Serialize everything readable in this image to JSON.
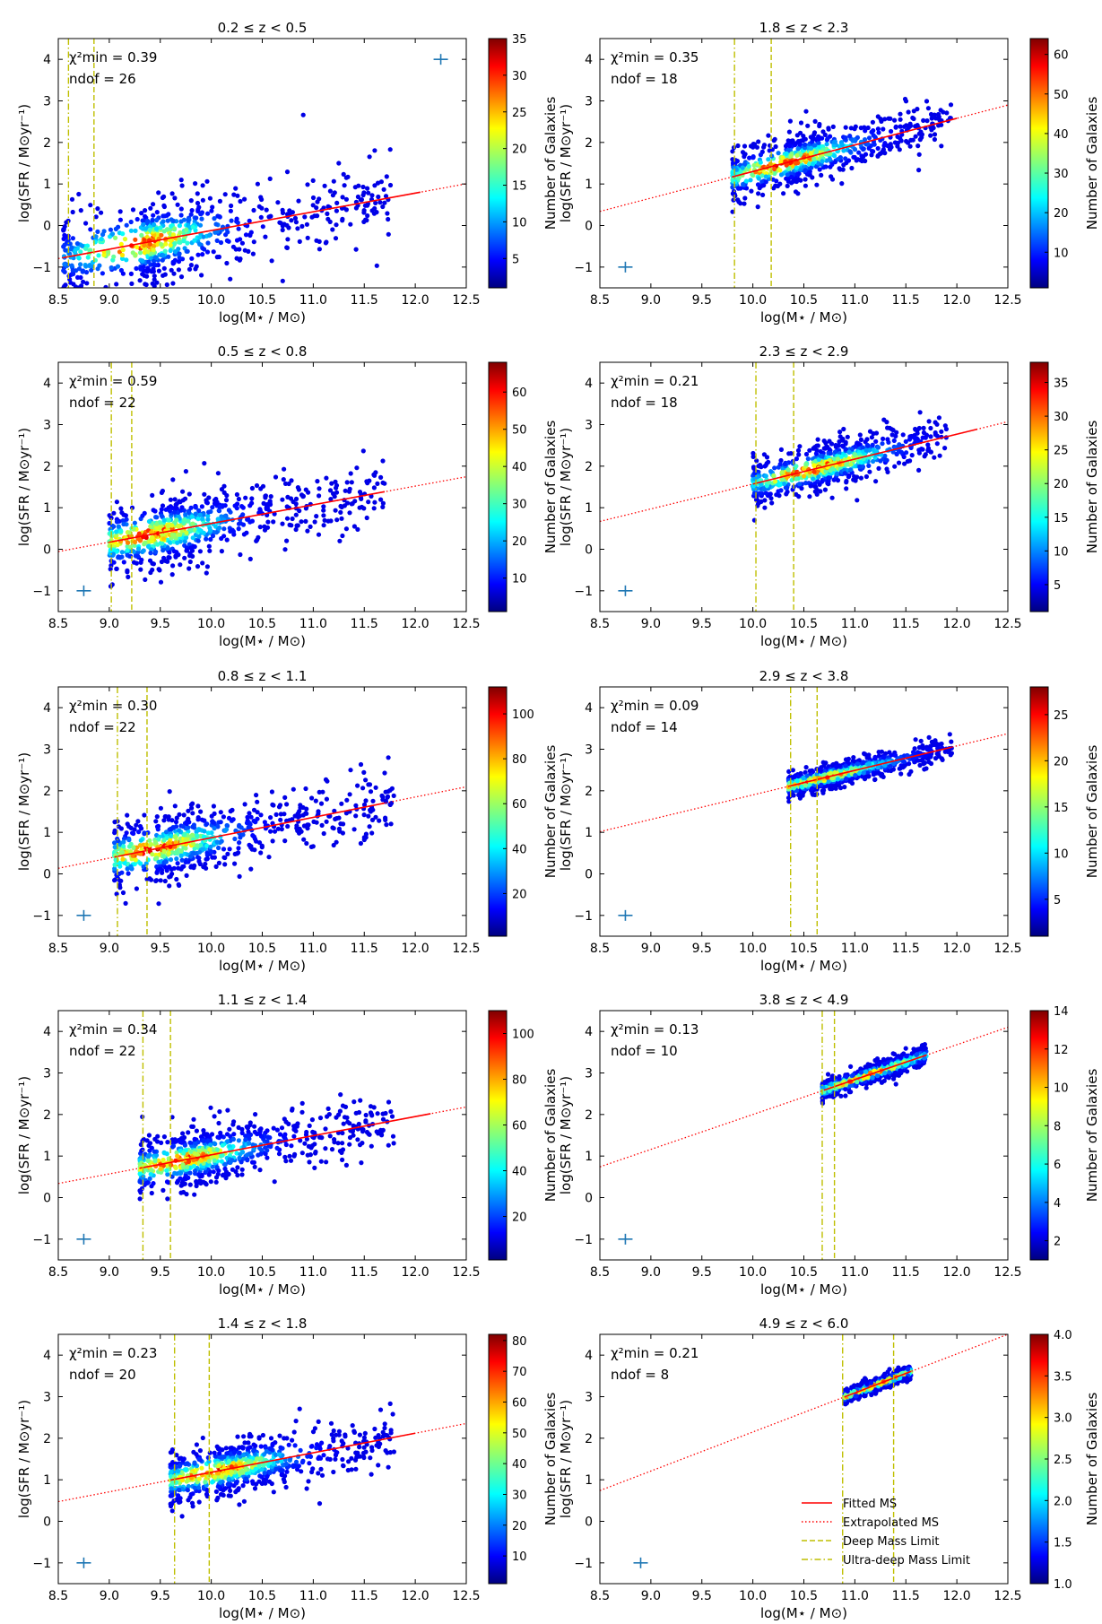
{
  "figure": {
    "x_axis_label": "log(M⋆ / M⊙)",
    "y_axis_label": "log(SFR / M⊙yr⁻¹)",
    "colorbar_label": "Number of Galaxies",
    "chi_label": "χ²min",
    "ndof_label": "ndof",
    "legend": [
      {
        "label": "Fitted MS",
        "style": "solid",
        "color": "#ff0000"
      },
      {
        "label": "Extrapolated MS",
        "style": "dotted",
        "color": "#ff0000"
      },
      {
        "label": "Deep Mass Limit",
        "style": "dashed",
        "color": "#bfbf00"
      },
      {
        "label": "Ultra-deep Mass Limit",
        "style": "dashdot",
        "color": "#bfbf00"
      }
    ],
    "colors": {
      "fit": "#ff0000",
      "mass_limit": "#bfbf00",
      "errorbar": "#1f77b4"
    }
  },
  "chart_data": [
    {
      "type": "scatter",
      "title": "0.2 ≤ z < 0.5",
      "xlim": [
        8.5,
        12.5
      ],
      "ylim": [
        -1.5,
        4.5
      ],
      "xticks": [
        "8.5",
        "9.0",
        "9.5",
        "10.0",
        "10.5",
        "11.0",
        "11.5",
        "12.0",
        "12.5"
      ],
      "yticks": [
        "-1",
        "0",
        "1",
        "2",
        "3",
        "4"
      ],
      "chi2": "0.39",
      "ndof": "26",
      "ms_slope": 0.45,
      "ms_intercept": -0.12,
      "fit_range": [
        8.55,
        12.05
      ],
      "ultra_deep_limit": 8.6,
      "deep_limit": 8.85,
      "cbar_max": 35,
      "cbar_ticks": [
        "5",
        "10",
        "15",
        "20",
        "25",
        "30",
        "35"
      ],
      "errorbar": [
        12.25,
        4.0
      ],
      "cloud_xrange": [
        8.55,
        11.8
      ],
      "cloud_scatter": 0.5,
      "peak_x": 9.3
    },
    {
      "type": "scatter",
      "title": "1.8 ≤ z < 2.3",
      "xlim": [
        8.5,
        12.5
      ],
      "ylim": [
        -1.5,
        4.5
      ],
      "xticks": [
        "8.5",
        "9.0",
        "9.5",
        "10.0",
        "10.5",
        "11.0",
        "11.5",
        "12.0",
        "12.5"
      ],
      "yticks": [
        "-1",
        "0",
        "1",
        "2",
        "3",
        "4"
      ],
      "chi2": "0.35",
      "ndof": "18",
      "ms_slope": 0.64,
      "ms_intercept": 1.3,
      "fit_range": [
        9.8,
        12.0
      ],
      "ultra_deep_limit": 9.82,
      "deep_limit": 10.18,
      "cbar_max": 64,
      "cbar_ticks": [
        "10",
        "20",
        "30",
        "40",
        "50",
        "60"
      ],
      "errorbar": [
        8.75,
        -1.0
      ],
      "cloud_xrange": [
        9.8,
        11.95
      ],
      "cloud_scatter": 0.3,
      "peak_x": 10.3
    },
    {
      "type": "scatter",
      "title": "0.5 ≤ z < 0.8",
      "xlim": [
        8.5,
        12.5
      ],
      "ylim": [
        -1.5,
        4.5
      ],
      "xticks": [
        "8.5",
        "9.0",
        "9.5",
        "10.0",
        "10.5",
        "11.0",
        "11.5",
        "12.0",
        "12.5"
      ],
      "yticks": [
        "-1",
        "0",
        "1",
        "2",
        "3",
        "4"
      ],
      "chi2": "0.59",
      "ndof": "22",
      "ms_slope": 0.45,
      "ms_intercept": 0.62,
      "fit_range": [
        9.0,
        11.7
      ],
      "ultra_deep_limit": 9.02,
      "deep_limit": 9.22,
      "cbar_max": 68,
      "cbar_ticks": [
        "10",
        "20",
        "30",
        "40",
        "50",
        "60"
      ],
      "errorbar": [
        8.75,
        -1.0
      ],
      "cloud_xrange": [
        9.0,
        11.7
      ],
      "cloud_scatter": 0.42,
      "peak_x": 9.4
    },
    {
      "type": "scatter",
      "title": "2.3 ≤ z < 2.9",
      "xlim": [
        8.5,
        12.5
      ],
      "ylim": [
        -1.5,
        4.5
      ],
      "xticks": [
        "8.5",
        "9.0",
        "9.5",
        "10.0",
        "10.5",
        "11.0",
        "11.5",
        "12.0",
        "12.5"
      ],
      "yticks": [
        "-1",
        "0",
        "1",
        "2",
        "3",
        "4"
      ],
      "chi2": "0.21",
      "ndof": "18",
      "ms_slope": 0.6,
      "ms_intercept": 1.57,
      "fit_range": [
        10.0,
        12.2
      ],
      "ultra_deep_limit": 10.03,
      "deep_limit": 10.4,
      "cbar_max": 38,
      "cbar_ticks": [
        "5",
        "10",
        "15",
        "20",
        "25",
        "30",
        "35"
      ],
      "errorbar": [
        8.75,
        -1.0
      ],
      "cloud_xrange": [
        10.0,
        11.9
      ],
      "cloud_scatter": 0.28,
      "peak_x": 10.6
    },
    {
      "type": "scatter",
      "title": "0.8 ≤ z < 1.1",
      "xlim": [
        8.5,
        12.5
      ],
      "ylim": [
        -1.5,
        4.5
      ],
      "xticks": [
        "8.5",
        "9.0",
        "9.5",
        "10.0",
        "10.5",
        "11.0",
        "11.5",
        "12.0",
        "12.5"
      ],
      "yticks": [
        "-1",
        "0",
        "1",
        "2",
        "3",
        "4"
      ],
      "chi2": "0.30",
      "ndof": "22",
      "ms_slope": 0.49,
      "ms_intercept": 0.87,
      "fit_range": [
        9.05,
        11.7
      ],
      "ultra_deep_limit": 9.08,
      "deep_limit": 9.37,
      "cbar_max": 112,
      "cbar_ticks": [
        "20",
        "40",
        "60",
        "80",
        "100"
      ],
      "errorbar": [
        8.75,
        -1.0
      ],
      "cloud_xrange": [
        9.05,
        11.8
      ],
      "cloud_scatter": 0.4,
      "peak_x": 9.45
    },
    {
      "type": "scatter",
      "title": "2.9 ≤ z < 3.8",
      "xlim": [
        8.5,
        12.5
      ],
      "ylim": [
        -1.5,
        4.5
      ],
      "xticks": [
        "8.5",
        "9.0",
        "9.5",
        "10.0",
        "10.5",
        "11.0",
        "11.5",
        "12.0",
        "12.5"
      ],
      "yticks": [
        "-1",
        "0",
        "1",
        "2",
        "3",
        "4"
      ],
      "chi2": "0.09",
      "ndof": "14",
      "ms_slope": 0.59,
      "ms_intercept": 1.9,
      "fit_range": [
        10.35,
        11.95
      ],
      "ultra_deep_limit": 10.37,
      "deep_limit": 10.63,
      "cbar_max": 28,
      "cbar_ticks": [
        "5",
        "10",
        "15",
        "20",
        "25"
      ],
      "errorbar": [
        8.75,
        -1.0
      ],
      "cloud_xrange": [
        10.35,
        11.95
      ],
      "cloud_scatter": 0.15,
      "peak_x": 10.65
    },
    {
      "type": "scatter",
      "title": "1.1 ≤ z < 1.4",
      "xlim": [
        8.5,
        12.5
      ],
      "ylim": [
        -1.5,
        4.5
      ],
      "xticks": [
        "8.5",
        "9.0",
        "9.5",
        "10.0",
        "10.5",
        "11.0",
        "11.5",
        "12.0",
        "12.5"
      ],
      "yticks": [
        "-1",
        "0",
        "1",
        "2",
        "3",
        "4"
      ],
      "chi2": "0.34",
      "ndof": "22",
      "ms_slope": 0.46,
      "ms_intercept": 1.03,
      "fit_range": [
        9.3,
        12.15
      ],
      "ultra_deep_limit": 9.33,
      "deep_limit": 9.6,
      "cbar_max": 110,
      "cbar_ticks": [
        "20",
        "40",
        "60",
        "80",
        "100"
      ],
      "errorbar": [
        8.75,
        -1.0
      ],
      "cloud_xrange": [
        9.3,
        11.8
      ],
      "cloud_scatter": 0.35,
      "peak_x": 9.7
    },
    {
      "type": "scatter",
      "title": "3.8 ≤ z < 4.9",
      "xlim": [
        8.5,
        12.5
      ],
      "ylim": [
        -1.5,
        4.5
      ],
      "xticks": [
        "8.5",
        "9.0",
        "9.5",
        "10.0",
        "10.5",
        "11.0",
        "11.5",
        "12.0",
        "12.5"
      ],
      "yticks": [
        "-1",
        "0",
        "1",
        "2",
        "3",
        "4"
      ],
      "chi2": "0.13",
      "ndof": "10",
      "ms_slope": 0.84,
      "ms_intercept": 2.0,
      "fit_range": [
        10.7,
        11.7
      ],
      "ultra_deep_limit": 10.68,
      "deep_limit": 10.8,
      "cbar_max": 14,
      "cbar_ticks": [
        "2",
        "4",
        "6",
        "8",
        "10",
        "12",
        "14"
      ],
      "errorbar": [
        8.75,
        -1.0
      ],
      "cloud_xrange": [
        10.68,
        11.7
      ],
      "cloud_scatter": 0.12,
      "peak_x": 11.1
    },
    {
      "type": "scatter",
      "title": "1.4 ≤ z < 1.8",
      "xlim": [
        8.5,
        12.5
      ],
      "ylim": [
        -1.5,
        4.5
      ],
      "xticks": [
        "8.5",
        "9.0",
        "9.5",
        "10.0",
        "10.5",
        "11.0",
        "11.5",
        "12.0",
        "12.5"
      ],
      "yticks": [
        "-1",
        "0",
        "1",
        "2",
        "3",
        "4"
      ],
      "chi2": "0.23",
      "ndof": "20",
      "ms_slope": 0.47,
      "ms_intercept": 1.18,
      "fit_range": [
        9.6,
        12.0
      ],
      "ultra_deep_limit": 9.64,
      "deep_limit": 9.98,
      "cbar_max": 82,
      "cbar_ticks": [
        "10",
        "20",
        "30",
        "40",
        "50",
        "60",
        "70",
        "80"
      ],
      "errorbar": [
        8.75,
        -1.0
      ],
      "cloud_xrange": [
        9.6,
        11.8
      ],
      "cloud_scatter": 0.33,
      "peak_x": 10.05
    },
    {
      "type": "scatter",
      "title": "4.9 ≤ z < 6.0",
      "xlim": [
        8.5,
        12.5
      ],
      "ylim": [
        -1.5,
        4.5
      ],
      "xticks": [
        "8.5",
        "9.0",
        "9.5",
        "10.0",
        "10.5",
        "11.0",
        "11.5",
        "12.0",
        "12.5"
      ],
      "yticks": [
        "-1",
        "0",
        "1",
        "2",
        "3",
        "4"
      ],
      "chi2": "0.21",
      "ndof": "8",
      "ms_slope": 0.94,
      "ms_intercept": 2.15,
      "fit_range": [
        10.9,
        11.55
      ],
      "ultra_deep_limit": 10.88,
      "deep_limit": 11.38,
      "cbar_max": 4.0,
      "cbar_min": 1.0,
      "cbar_ticks": [
        "1.0",
        "1.5",
        "2.0",
        "2.5",
        "3.0",
        "3.5",
        "4.0"
      ],
      "errorbar": [
        8.9,
        -1.0
      ],
      "cloud_xrange": [
        10.9,
        11.55
      ],
      "cloud_scatter": 0.08,
      "peak_x": 11.2
    }
  ]
}
